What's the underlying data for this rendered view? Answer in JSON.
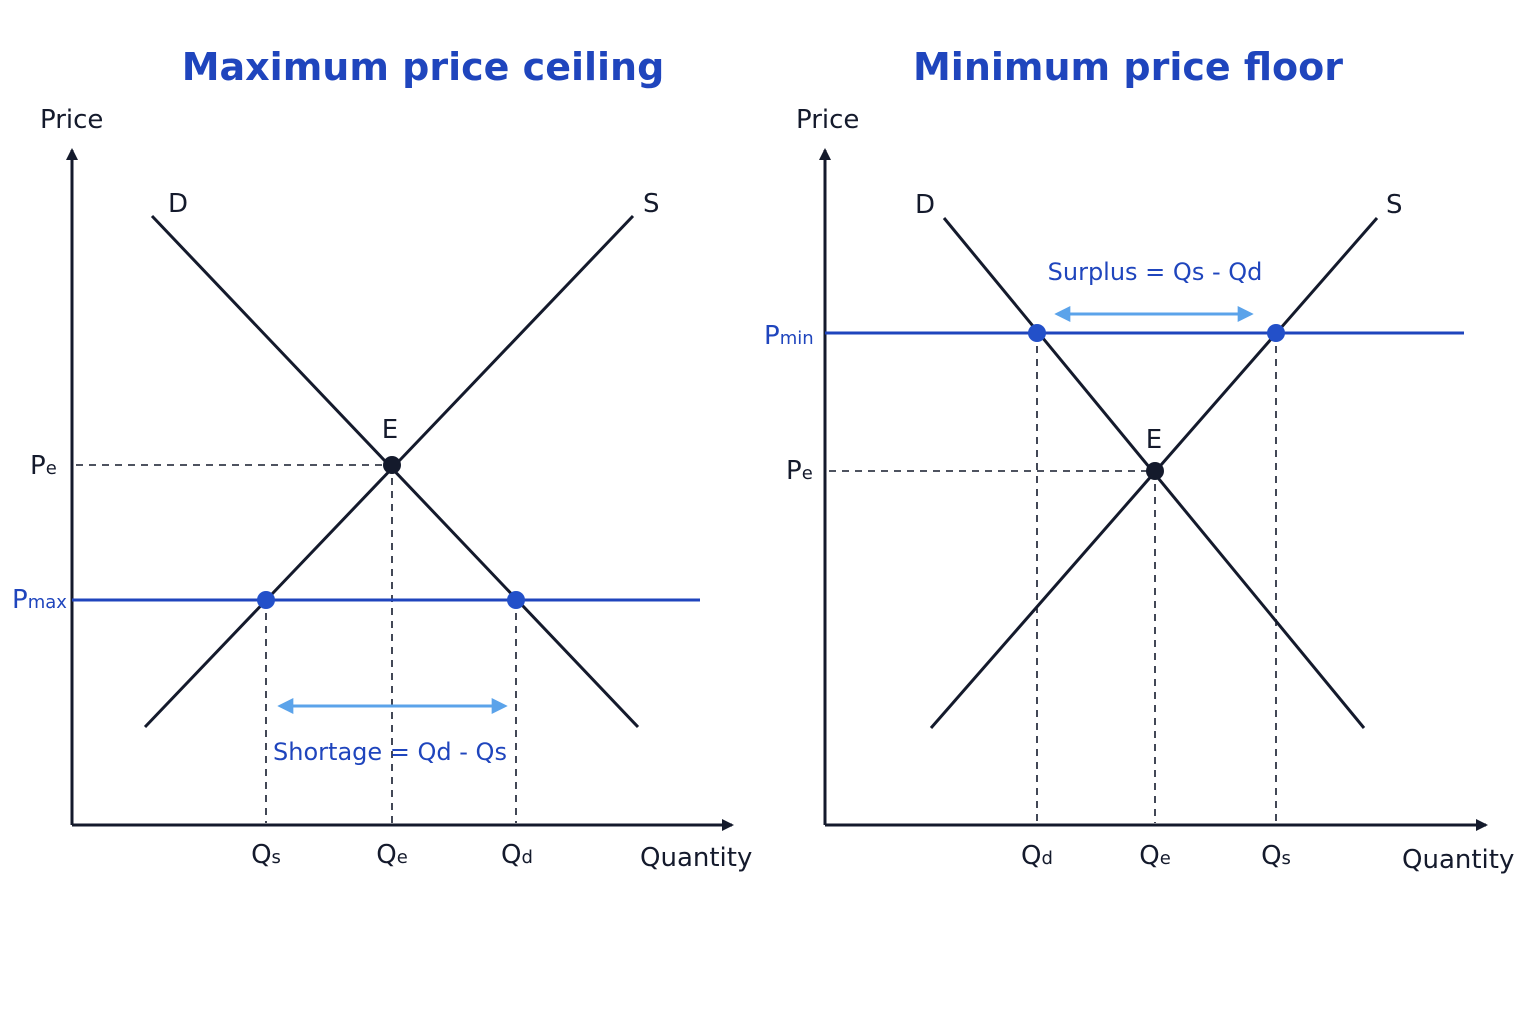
{
  "colors": {
    "ink": "#141a2c",
    "blue": "#1f45bd",
    "light_blue": "#5ba3ea",
    "point_blue": "#2350c9"
  },
  "left": {
    "title": "Maximum price ceiling",
    "y_axis_label": "Price",
    "x_axis_label": "Quantity",
    "demand_label": "D",
    "supply_label": "S",
    "equilibrium_label": "E",
    "pe_main": "P",
    "pe_sub": "e",
    "price_line_main": "P",
    "price_line_sub": "max",
    "qs_main": "Q",
    "qs_sub": "s",
    "qe_main": "Q",
    "qe_sub": "e",
    "qd_main": "Q",
    "qd_sub": "d",
    "gap_label": "Shortage = Qd - Qs"
  },
  "right": {
    "title": "Minimum price floor",
    "y_axis_label": "Price",
    "x_axis_label": "Quantity",
    "demand_label": "D",
    "supply_label": "S",
    "equilibrium_label": "E",
    "pe_main": "P",
    "pe_sub": "e",
    "price_line_main": "P",
    "price_line_sub": "min",
    "qd_main": "Q",
    "qd_sub": "d",
    "qe_main": "Q",
    "qe_sub": "e",
    "qs_main": "Q",
    "qs_sub": "s",
    "gap_label": "Surplus = Qs - Qd"
  }
}
